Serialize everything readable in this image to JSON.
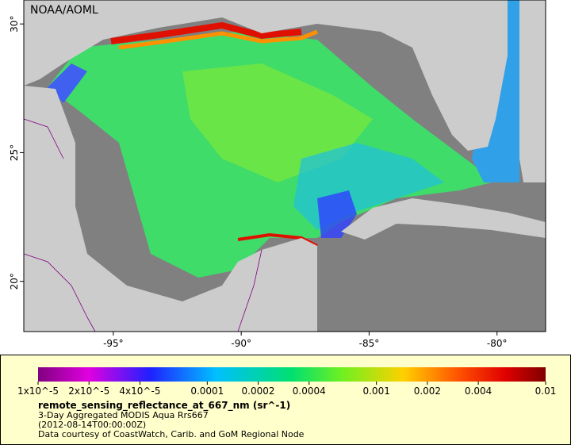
{
  "map": {
    "credit": "NOAA/AOML",
    "lon_range": [
      -98.5,
      -78.1
    ],
    "lat_range": [
      18.05,
      30.93
    ],
    "lon_ticks": [
      {
        "value": -95,
        "label": "-95°"
      },
      {
        "value": -90,
        "label": "-90°"
      },
      {
        "value": -85,
        "label": "-85°"
      },
      {
        "value": -80,
        "label": "-80°"
      }
    ],
    "lat_ticks": [
      {
        "value": 30,
        "label": "30°"
      },
      {
        "value": 25,
        "label": "25°"
      },
      {
        "value": 20,
        "label": "20°"
      }
    ]
  },
  "colorbar": {
    "range": [
      1e-05,
      0.01
    ],
    "log": true,
    "ticks": [
      {
        "value": 1e-05,
        "label": "1x10^-5"
      },
      {
        "value": 2e-05,
        "label": "2x10^-5"
      },
      {
        "value": 4e-05,
        "label": "4x10^-5"
      },
      0.0001,
      0.0002,
      0.0004,
      0.001,
      0.002,
      0.004,
      0.01
    ]
  },
  "legend": {
    "variable": "remote_sensing_reflectance_at_667_nm (sr^-1)",
    "subtitle": "3-Day Aggregated MODIS Aqua Rrs667",
    "time": "(2012-08-14T00:00:00Z)",
    "source": "Data courtesy of CoastWatch, Carib. and GoM Regional Node"
  }
}
